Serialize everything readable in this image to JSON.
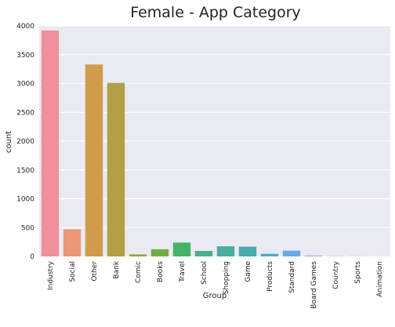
{
  "chart_data": {
    "type": "bar",
    "title": "Female - App Category",
    "xlabel": "Group",
    "ylabel": "count",
    "ylim": [
      0,
      4000
    ],
    "yticks": [
      0,
      500,
      1000,
      1500,
      2000,
      2500,
      3000,
      3500,
      4000
    ],
    "grid": true,
    "categories": [
      "Industry",
      "Social",
      "Other",
      "Bank",
      "Comic",
      "Books",
      "Travel",
      "School",
      "Shopping",
      "Game",
      "Products",
      "Standard",
      "Board Games",
      "Country",
      "Sports",
      "Animation"
    ],
    "values": [
      3920,
      470,
      3330,
      3010,
      35,
      125,
      240,
      95,
      175,
      170,
      45,
      100,
      15,
      5,
      3,
      2
    ],
    "colors": [
      "#f08f9e",
      "#ea9877",
      "#d09c4c",
      "#b29f46",
      "#9aa33f",
      "#71ac44",
      "#46b265",
      "#4aae8d",
      "#4aac9f",
      "#4cabb0",
      "#4fa9c2",
      "#6aa8df",
      "#b19eec",
      "#d791ea",
      "#e788d5",
      "#f08ab8"
    ]
  }
}
